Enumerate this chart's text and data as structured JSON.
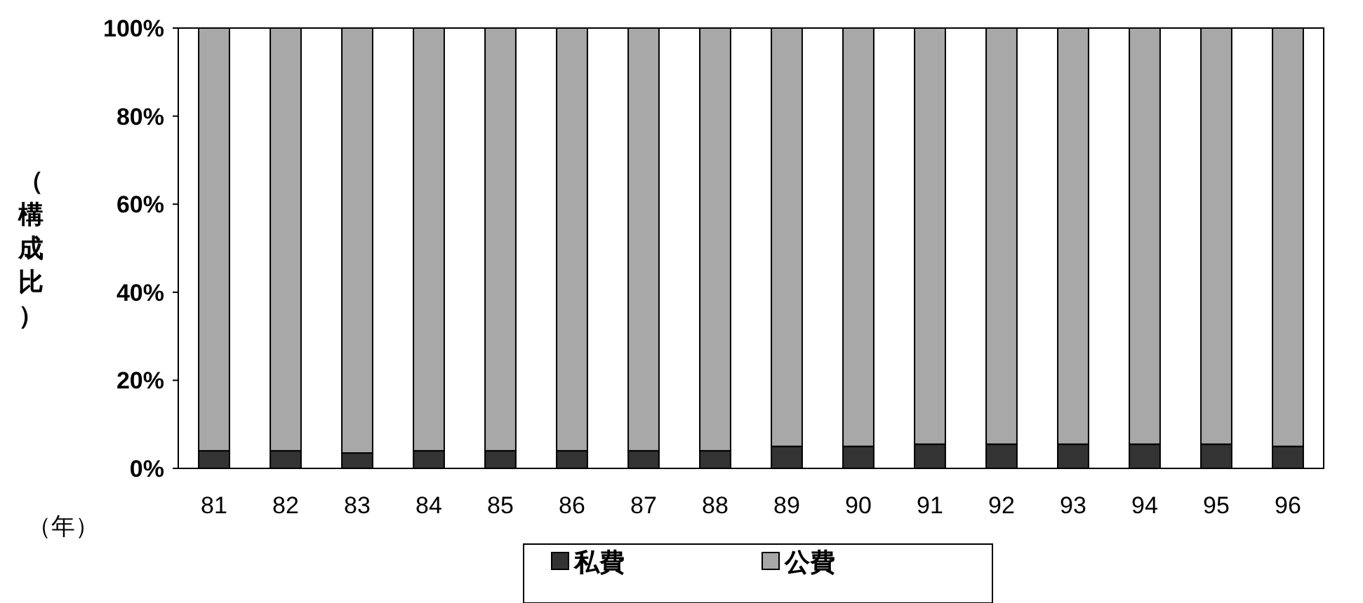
{
  "chart_data": {
    "type": "bar",
    "stacked": true,
    "ylabel": "（構成比）",
    "xlabel": "（年）",
    "categories": [
      "81",
      "82",
      "83",
      "84",
      "85",
      "86",
      "87",
      "88",
      "89",
      "90",
      "91",
      "92",
      "93",
      "94",
      "95",
      "96"
    ],
    "series": [
      {
        "name": "私費",
        "color": "#333333",
        "values": [
          4,
          4,
          3.5,
          4,
          4,
          4,
          4,
          4,
          5,
          5,
          5.5,
          5.5,
          5.5,
          5.5,
          5.5,
          5
        ]
      },
      {
        "name": "公費",
        "color": "#a8a8a8",
        "values": [
          96,
          96,
          96.5,
          96,
          96,
          96,
          96,
          96,
          95,
          95,
          94.5,
          94.5,
          94.5,
          94.5,
          94.5,
          95
        ]
      }
    ],
    "ylim": [
      0,
      100
    ],
    "yticks": [
      {
        "value": 0,
        "label": "0%"
      },
      {
        "value": 20,
        "label": "20%"
      },
      {
        "value": 40,
        "label": "40%"
      },
      {
        "value": 60,
        "label": "60%"
      },
      {
        "value": 80,
        "label": "80%"
      },
      {
        "value": 100,
        "label": "100%"
      }
    ],
    "grid": false,
    "legend": "bottom"
  }
}
